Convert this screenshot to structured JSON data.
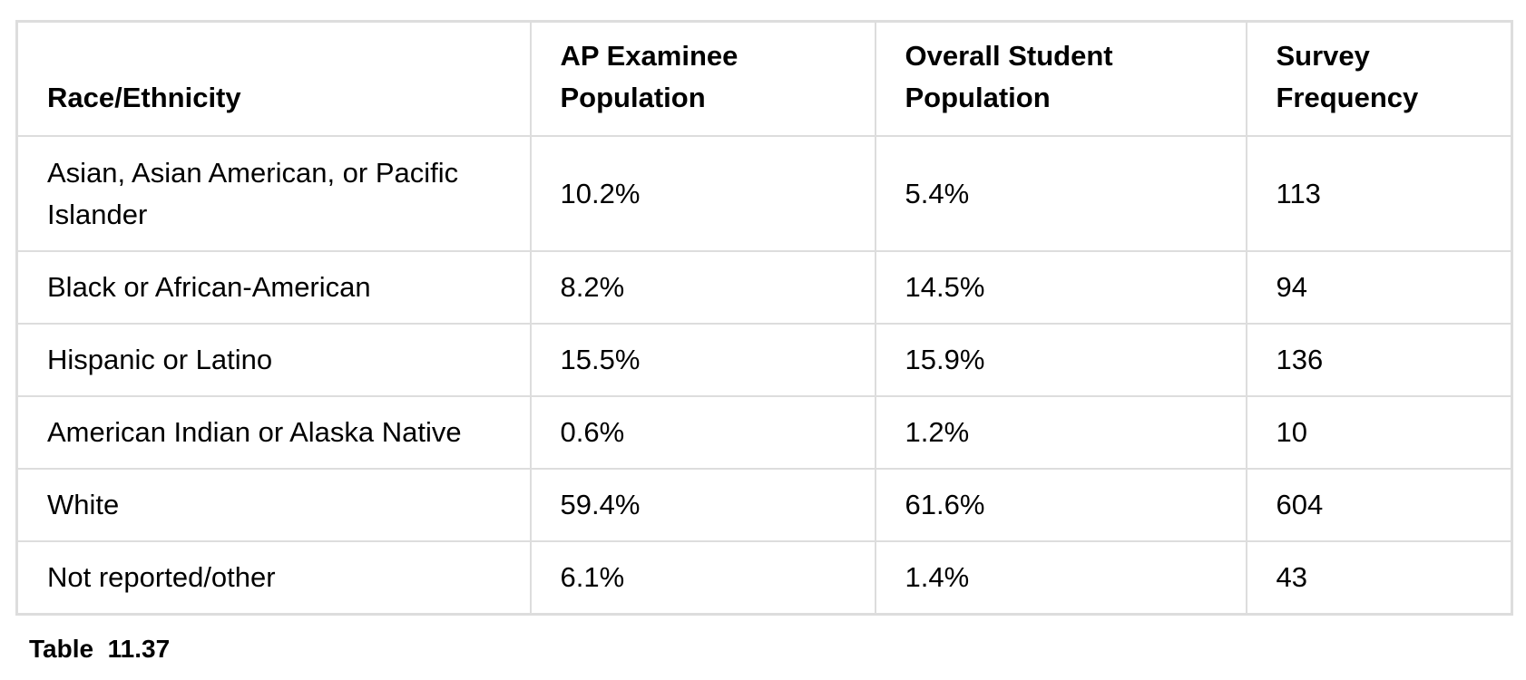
{
  "table": {
    "headers": [
      "Race/Ethnicity",
      "AP Examinee Population",
      "Overall Student Population",
      "Survey Frequency"
    ],
    "rows": [
      [
        "Asian, Asian American, or Pacific Islander",
        "10.2%",
        "5.4%",
        "113"
      ],
      [
        "Black or African-American",
        "8.2%",
        "14.5%",
        "94"
      ],
      [
        "Hispanic or Latino",
        "15.5%",
        "15.9%",
        "136"
      ],
      [
        "American Indian or Alaska Native",
        "0.6%",
        "1.2%",
        "10"
      ],
      [
        "White",
        "59.4%",
        "61.6%",
        "604"
      ],
      [
        "Not reported/other",
        "6.1%",
        "1.4%",
        "43"
      ]
    ]
  },
  "caption": "Table  11.37"
}
